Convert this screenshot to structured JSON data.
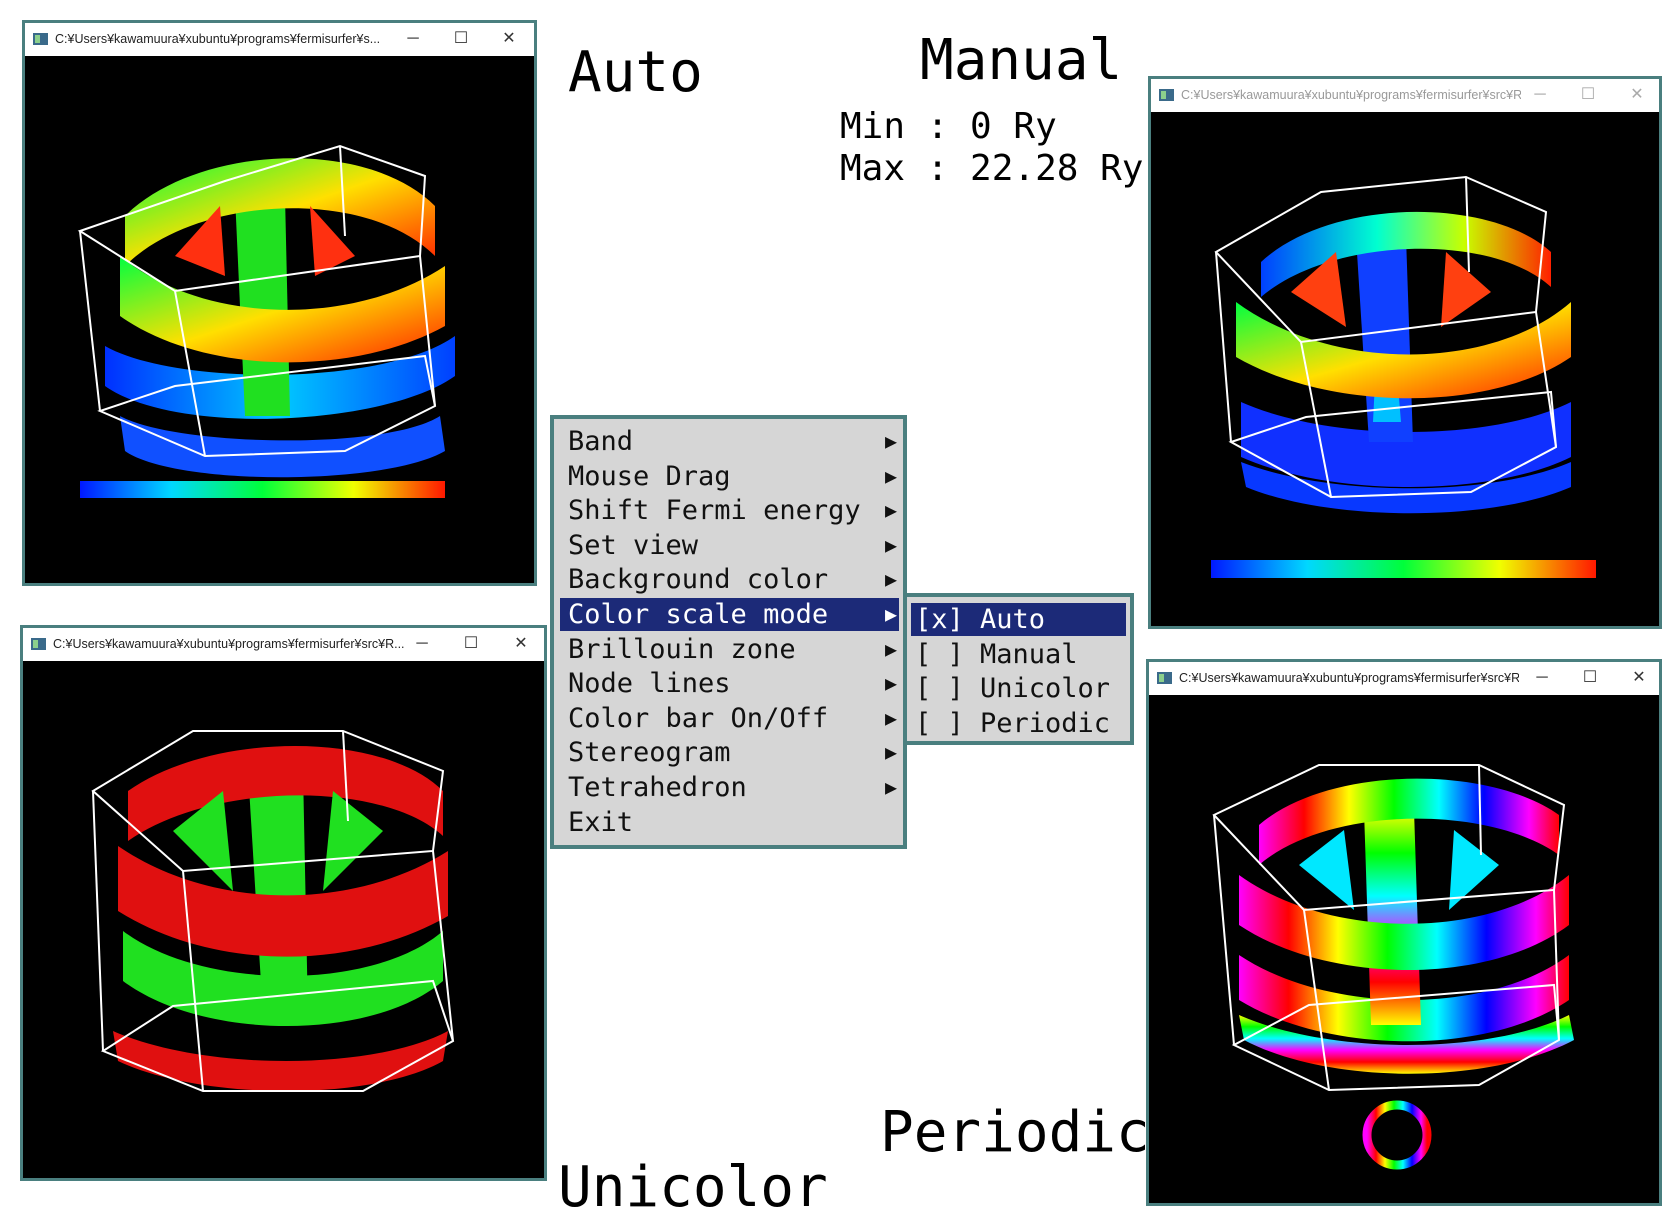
{
  "labels": {
    "auto": "Auto",
    "manual": "Manual",
    "min_line": "Min : 0 Ry",
    "max_line": "Max : 22.28 Ry",
    "periodic": "Periodic",
    "unicolor": "Unicolor"
  },
  "windows": {
    "auto": {
      "title": "C:¥Users¥kawamuura¥xubuntu¥programs¥fermisurfer¥s...",
      "min": "─",
      "max": "☐",
      "close": "✕"
    },
    "unicolor": {
      "title": "C:¥Users¥kawamuura¥xubuntu¥programs¥fermisurfer¥src¥R...",
      "min": "─",
      "max": "☐",
      "close": "✕"
    },
    "manual": {
      "title": "C:¥Users¥kawamuura¥xubuntu¥programs¥fermisurfer¥src¥R...",
      "min": "─",
      "max": "☐",
      "close": "✕"
    },
    "periodic": {
      "title": "C:¥Users¥kawamuura¥xubuntu¥programs¥fermisurfer¥src¥R...",
      "min": "─",
      "max": "☐",
      "close": "✕"
    }
  },
  "menu": {
    "items": [
      {
        "label": "Band",
        "arrow": "▶"
      },
      {
        "label": "Mouse Drag",
        "arrow": "▶"
      },
      {
        "label": "Shift Fermi energy",
        "arrow": "▶"
      },
      {
        "label": "Set view",
        "arrow": "▶"
      },
      {
        "label": "Background color",
        "arrow": "▶"
      },
      {
        "label": "Color scale mode",
        "arrow": "▶"
      },
      {
        "label": "Brillouin zone",
        "arrow": "▶"
      },
      {
        "label": "Node lines",
        "arrow": "▶"
      },
      {
        "label": "Color bar On/Off",
        "arrow": "▶"
      },
      {
        "label": "Stereogram",
        "arrow": "▶"
      },
      {
        "label": "Tetrahedron",
        "arrow": "▶"
      },
      {
        "label": "Exit",
        "arrow": ""
      }
    ],
    "selected_index": 5
  },
  "submenu": {
    "items": [
      {
        "label": "[x] Auto"
      },
      {
        "label": "[ ] Manual"
      },
      {
        "label": "[ ] Unicolor"
      },
      {
        "label": "[ ] Periodic"
      }
    ],
    "selected_index": 0
  },
  "colors": {
    "window_border": "#4a7f7f",
    "menu_bg": "#d6d6d6",
    "menu_highlight": "#1c2a78"
  }
}
